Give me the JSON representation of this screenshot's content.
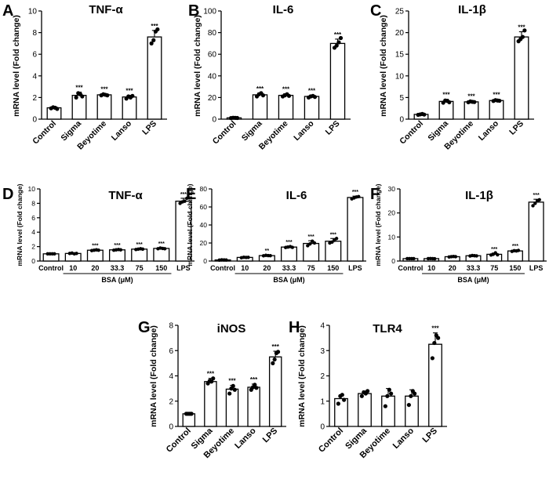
{
  "chart_data": [
    {
      "id": "A",
      "label": "A",
      "type": "bar",
      "title": "TNF-α",
      "ylabel": "mRNA level (Fold change)",
      "ylim": [
        0,
        10
      ],
      "yticks": [
        0,
        2,
        4,
        6,
        8,
        10
      ],
      "categories": [
        "Control",
        "Sigma",
        "Beyotime",
        "Lanso",
        "LPS"
      ],
      "values": [
        1.05,
        2.2,
        2.25,
        2.05,
        7.6
      ],
      "errors": [
        0.08,
        0.3,
        0.1,
        0.15,
        0.6
      ],
      "points": [
        [
          1.0,
          1.1,
          1.05,
          0.95
        ],
        [
          2.0,
          2.4,
          2.3,
          2.1
        ],
        [
          2.2,
          2.3,
          2.25,
          2.2
        ],
        [
          1.9,
          2.1,
          2.0,
          2.15
        ],
        [
          7.0,
          7.3,
          8.1,
          8.3
        ]
      ],
      "sig": [
        "",
        "***",
        "***",
        "***",
        "***"
      ]
    },
    {
      "id": "B",
      "label": "B",
      "type": "bar",
      "title": "IL-6",
      "ylabel": "mRNA level (Fold change)",
      "ylim": [
        0,
        100
      ],
      "yticks": [
        0,
        20,
        40,
        60,
        80,
        100
      ],
      "categories": [
        "Control",
        "Sigma",
        "Beyotime",
        "Lanso",
        "LPS"
      ],
      "values": [
        1.2,
        22.5,
        22,
        21,
        70
      ],
      "errors": [
        0.4,
        1.5,
        1.5,
        1.2,
        4
      ],
      "points": [
        [
          1,
          1.3,
          1.2,
          1.1
        ],
        [
          21,
          23,
          24,
          22
        ],
        [
          21,
          22,
          23,
          21.5
        ],
        [
          20,
          21,
          21.5,
          20.5
        ],
        [
          66,
          68,
          71,
          75
        ]
      ],
      "sig": [
        "",
        "***",
        "***",
        "***",
        "***"
      ]
    },
    {
      "id": "C",
      "label": "C",
      "type": "bar",
      "title": "IL-1β",
      "ylabel": "mRNA level (Fold change)",
      "ylim": [
        0,
        25
      ],
      "yticks": [
        0,
        5,
        10,
        15,
        20,
        25
      ],
      "categories": [
        "Control",
        "Sigma",
        "Beyotime",
        "Lanso",
        "LPS"
      ],
      "values": [
        1.1,
        4.1,
        4.0,
        4.3,
        19
      ],
      "errors": [
        0.1,
        0.5,
        0.3,
        0.3,
        1.2
      ],
      "points": [
        [
          1,
          1.1,
          1.2,
          1.05
        ],
        [
          3.8,
          4.3,
          4.2,
          3.9
        ],
        [
          3.9,
          4.1,
          4.0,
          3.95
        ],
        [
          4.2,
          4.4,
          4.3,
          4.25
        ],
        [
          18,
          18.5,
          19,
          20.5
        ]
      ],
      "sig": [
        "",
        "***",
        "***",
        "***",
        "***"
      ]
    },
    {
      "id": "D",
      "label": "D",
      "type": "bar",
      "title": "TNF-α",
      "ylabel": "mRNA level (Fold change)",
      "ylim": [
        0,
        10
      ],
      "yticks": [
        0,
        2,
        4,
        6,
        8,
        10
      ],
      "categories": [
        "Control",
        "10",
        "20",
        "33.3",
        "75",
        "150",
        "LPS"
      ],
      "values": [
        1.0,
        1.05,
        1.5,
        1.55,
        1.65,
        1.75,
        8.3
      ],
      "errors": [
        0.05,
        0.05,
        0.08,
        0.06,
        0.07,
        0.1,
        0.4
      ],
      "points": [
        [
          1,
          1,
          1,
          1
        ],
        [
          1.05,
          1.1,
          1,
          1.05
        ],
        [
          1.45,
          1.5,
          1.55,
          1.5
        ],
        [
          1.5,
          1.55,
          1.6,
          1.55
        ],
        [
          1.6,
          1.65,
          1.7,
          1.65
        ],
        [
          1.7,
          1.8,
          1.75,
          1.7
        ],
        [
          8.0,
          8.2,
          8.3,
          8.7
        ]
      ],
      "sig": [
        "",
        "",
        "***",
        "***",
        "***",
        "***",
        "***"
      ],
      "group_label": "BSA (μM)",
      "group_range": [
        1,
        5
      ]
    },
    {
      "id": "E",
      "label": "E",
      "type": "bar",
      "title": "IL-6",
      "ylabel": "mRNA level (Fold change)",
      "ylim": [
        0,
        80
      ],
      "yticks": [
        0,
        20,
        40,
        60,
        80
      ],
      "categories": [
        "Control",
        "10",
        "20",
        "33.3",
        "75",
        "150",
        "LPS"
      ],
      "values": [
        1.2,
        4.0,
        6.0,
        15.5,
        19.5,
        22,
        70.5
      ],
      "errors": [
        0.3,
        0.5,
        0.8,
        1,
        3,
        3,
        1.5
      ],
      "points": [
        [
          1,
          1.3,
          1.2,
          1.1
        ],
        [
          3.6,
          4.2,
          4.0,
          4.1
        ],
        [
          5.8,
          6.3,
          6.0,
          5.9
        ],
        [
          15,
          15.5,
          16,
          15.2
        ],
        [
          17,
          19,
          22,
          20
        ],
        [
          20,
          21,
          23,
          25
        ],
        [
          69,
          70,
          71,
          71.5
        ]
      ],
      "sig": [
        "",
        "",
        "**",
        "***",
        "***",
        "***",
        "***"
      ],
      "group_label": "BSA (μM)",
      "group_range": [
        1,
        5
      ]
    },
    {
      "id": "F",
      "label": "F",
      "type": "bar",
      "title": "IL-1β",
      "ylabel": "mRNA level (Fold change)",
      "ylim": [
        0,
        30
      ],
      "yticks": [
        0,
        10,
        20,
        30
      ],
      "categories": [
        "Control",
        "10",
        "20",
        "33.3",
        "75",
        "150",
        "LPS"
      ],
      "values": [
        1.0,
        1.0,
        1.8,
        2.2,
        2.8,
        4.2,
        24.5
      ],
      "errors": [
        0.05,
        0.05,
        0.1,
        0.15,
        0.5,
        0.3,
        1.2
      ],
      "points": [
        [
          1,
          1,
          1,
          1
        ],
        [
          1,
          1.05,
          1,
          0.95
        ],
        [
          1.7,
          1.8,
          1.9,
          1.8
        ],
        [
          2.1,
          2.3,
          2.2,
          2.15
        ],
        [
          2.5,
          2.8,
          3.4,
          2.6
        ],
        [
          4.0,
          4.3,
          4.2,
          4.4
        ],
        [
          23,
          24,
          25,
          25.5
        ]
      ],
      "sig": [
        "",
        "",
        "",
        "",
        "***",
        "***",
        "***"
      ],
      "group_label": "BSA (μM)",
      "group_range": [
        1,
        5
      ]
    },
    {
      "id": "G",
      "label": "G",
      "type": "bar",
      "title": "iNOS",
      "ylabel": "mRNA level (Fold change)",
      "ylim": [
        0,
        8
      ],
      "yticks": [
        0,
        2,
        4,
        6,
        8
      ],
      "categories": [
        "Control",
        "Sigma",
        "Beyotime",
        "Lanso",
        "LPS"
      ],
      "values": [
        1.0,
        3.55,
        2.95,
        3.1,
        5.5
      ],
      "errors": [
        0.05,
        0.25,
        0.3,
        0.25,
        0.45
      ],
      "points": [
        [
          1,
          1,
          1,
          1
        ],
        [
          3.4,
          3.6,
          3.55,
          3.8
        ],
        [
          2.6,
          3.0,
          3.2,
          2.9
        ],
        [
          2.9,
          3.1,
          3.3,
          3.05
        ],
        [
          5.0,
          5.3,
          5.8,
          5.9
        ]
      ],
      "sig": [
        "",
        "***",
        "***",
        "***",
        "***"
      ]
    },
    {
      "id": "H",
      "label": "H",
      "type": "bar",
      "title": "TLR4",
      "ylabel": "mRNA level (Fold change)",
      "ylim": [
        0,
        4
      ],
      "yticks": [
        0,
        1,
        2,
        3,
        4
      ],
      "categories": [
        "Control",
        "Sigma",
        "Beyotime",
        "Lanso",
        "LPS"
      ],
      "values": [
        1.1,
        1.3,
        1.2,
        1.2,
        3.25
      ],
      "errors": [
        0.15,
        0.1,
        0.3,
        0.25,
        0.45
      ],
      "points": [
        [
          0.9,
          1.2,
          1.25,
          1.05
        ],
        [
          1.2,
          1.35,
          1.3,
          1.4
        ],
        [
          0.8,
          1.2,
          1.45,
          1.3
        ],
        [
          0.85,
          1.2,
          1.4,
          1.3
        ],
        [
          2.7,
          3.3,
          3.6,
          3.5
        ]
      ],
      "sig": [
        "",
        "",
        "",
        "",
        "***"
      ]
    }
  ]
}
